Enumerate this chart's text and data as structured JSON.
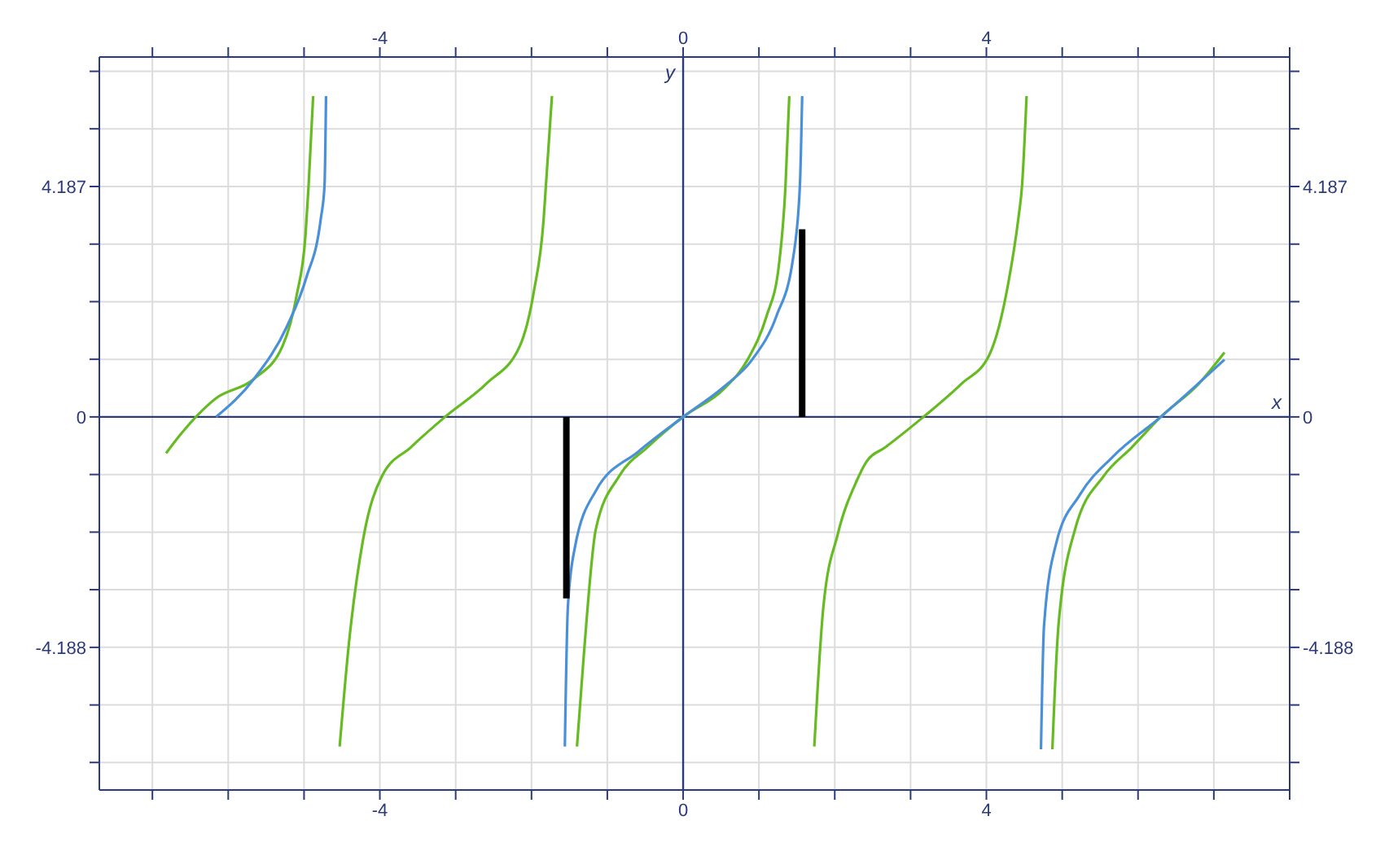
{
  "chart_data": {
    "type": "line",
    "xlabel": "x",
    "ylabel": "y",
    "xlim": [
      -7.7,
      8.0
    ],
    "ylim": [
      -6.78,
      6.54
    ],
    "x2lim": [
      -7.7,
      8.0
    ],
    "y2lim": [
      -6.78,
      6.54
    ],
    "xticks": [
      {
        "value": -7,
        "label": null
      },
      {
        "value": -6,
        "label": null
      },
      {
        "value": -5,
        "label": null
      },
      -4,
      {
        "value": -3,
        "label": null
      },
      {
        "value": -2,
        "label": null
      },
      {
        "value": -1,
        "label": null
      },
      0,
      {
        "value": 1,
        "label": null
      },
      {
        "value": 2,
        "label": null
      },
      {
        "value": 3,
        "label": null
      },
      4,
      {
        "value": 5,
        "label": null
      },
      {
        "value": 6,
        "label": null
      },
      {
        "value": 7,
        "label": null
      },
      {
        "value": 8,
        "label": null
      }
    ],
    "x2ticks": [
      {
        "value": -7,
        "label": null
      },
      {
        "value": -6,
        "label": null
      },
      {
        "value": -5,
        "label": null
      },
      -4,
      {
        "value": -3,
        "label": null
      },
      {
        "value": -2,
        "label": null
      },
      {
        "value": -1,
        "label": null
      },
      0,
      {
        "value": 1,
        "label": null
      },
      {
        "value": 2,
        "label": null
      },
      {
        "value": 3,
        "label": null
      },
      4,
      {
        "value": 5,
        "label": null
      },
      {
        "value": 6,
        "label": null
      },
      {
        "value": 7,
        "label": null
      },
      {
        "value": 8,
        "label": null
      }
    ],
    "yticks": [
      {
        "value": -6.28,
        "label": null
      },
      {
        "value": -5.235,
        "label": null
      },
      -4.188,
      {
        "value": -3.14,
        "label": null
      },
      {
        "value": -2.094,
        "label": null
      },
      {
        "value": -1.047,
        "label": null
      },
      0,
      {
        "value": 1.047,
        "label": null
      },
      {
        "value": 2.094,
        "label": null
      },
      {
        "value": 3.14,
        "label": null
      },
      4.187,
      {
        "value": 5.235,
        "label": null
      },
      {
        "value": 6.28,
        "label": null
      }
    ],
    "y2ticks": [
      {
        "value": -6.28,
        "label": null
      },
      {
        "value": -5.235,
        "label": null
      },
      -4.188,
      {
        "value": -3.14,
        "label": null
      },
      {
        "value": -2.094,
        "label": null
      },
      {
        "value": -1.047,
        "label": null
      },
      0,
      {
        "value": 1.047,
        "label": null
      },
      {
        "value": 2.094,
        "label": null
      },
      {
        "value": 3.14,
        "label": null
      },
      4.187,
      {
        "value": 5.235,
        "label": null
      },
      {
        "value": 6.28,
        "label": null
      }
    ],
    "grid": true,
    "legend": false,
    "marker": "none",
    "line_style": "solid",
    "series": [
      {
        "color": "#66bb22",
        "x": [
          -6.82,
          -6.63,
          -6.16,
          -5.66,
          -5.28,
          -5.1,
          -4.98,
          -4.94,
          -4.88
        ],
        "values": [
          -0.66,
          -0.32,
          0.34,
          0.69,
          1.3,
          2.19,
          3.32,
          4.2,
          5.83
        ]
      },
      {
        "color": "#66bb22",
        "x": [
          -4.53,
          -4.41,
          -4.22,
          -3.97,
          -3.59,
          -3.14,
          -2.59,
          -2.15,
          -1.97,
          -1.84,
          -1.81,
          -1.73
        ],
        "values": [
          -5.99,
          -4.14,
          -2.22,
          -1.07,
          -0.55,
          0,
          0.61,
          1.3,
          2.27,
          3.59,
          4.2,
          5.83
        ]
      },
      {
        "color": "#66bb22",
        "x": [
          -1.4,
          -1.31,
          -1.15,
          -0.84,
          -0.47,
          0,
          0.54,
          0.85,
          1.1,
          1.26,
          1.35,
          1.4
        ],
        "values": [
          -5.99,
          -4.33,
          -2.03,
          -1.07,
          -0.55,
          0,
          0.51,
          1.04,
          1.83,
          2.72,
          4.2,
          5.83
        ]
      },
      {
        "color": "#66bb22",
        "x": [
          1.73,
          1.85,
          2.04,
          2.29,
          2.42,
          2.67,
          3.17,
          3.67,
          4.04,
          4.29,
          4.42,
          4.47,
          4.53
        ],
        "values": [
          -5.99,
          -3.45,
          -2.13,
          -1.16,
          -0.81,
          -0.55,
          0,
          0.6,
          1.13,
          2.44,
          3.59,
          4.2,
          5.83
        ]
      },
      {
        "color": "#66bb22",
        "x": [
          4.87,
          4.95,
          5.17,
          5.55,
          5.92,
          6.3,
          6.8,
          7.14
        ],
        "values": [
          -6.04,
          -3.8,
          -2.04,
          -1.07,
          -0.55,
          0,
          0.6,
          1.17
        ]
      },
      {
        "color": "#4a90d9",
        "x": [
          -6.16,
          -5.66,
          -5.22,
          -4.97,
          -4.78,
          -4.73,
          -4.71
        ],
        "values": [
          0,
          0.69,
          1.66,
          2.53,
          3.59,
          4.2,
          5.83
        ]
      },
      {
        "color": "#4a90d9",
        "x": [
          -1.56,
          -1.52,
          -1.43,
          -1.15,
          -0.59,
          0,
          0.54,
          0.91,
          1.23,
          1.45,
          1.54,
          1.57
        ],
        "values": [
          -5.99,
          -3.45,
          -2.39,
          -1.34,
          -0.63,
          0,
          0.55,
          1.04,
          1.83,
          2.88,
          4.2,
          5.83
        ]
      },
      {
        "color": "#4a90d9",
        "x": [
          4.72,
          4.76,
          4.92,
          5.23,
          5.67,
          6.3,
          7.14
        ],
        "values": [
          -6.04,
          -3.8,
          -2.3,
          -1.42,
          -0.72,
          0,
          1.04
        ]
      },
      {
        "color": "#000000",
        "x": [
          -1.54,
          -1.54
        ],
        "values": [
          0,
          -3.3
        ]
      },
      {
        "color": "#000000",
        "x": [
          1.57,
          1.57
        ],
        "values": [
          0,
          3.41
        ]
      }
    ]
  }
}
